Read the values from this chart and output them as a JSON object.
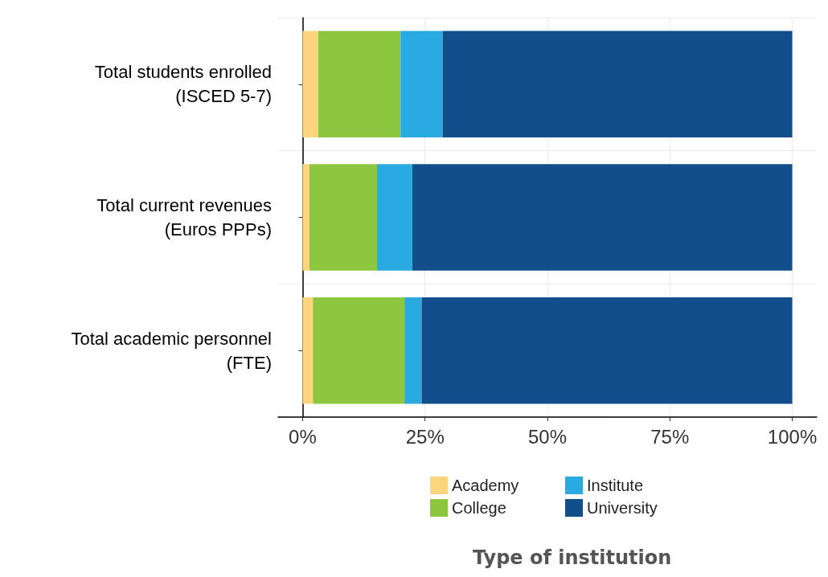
{
  "chart_data": {
    "type": "bar",
    "orientation": "horizontal",
    "stacked": true,
    "legend_title": "Type of institution",
    "legend": "bottom",
    "grid": true,
    "categories": [
      "Total students enrolled\n(ISCED 5-7)",
      "Total current revenues\n(Euros PPPs)",
      "Total academic personnel\n(FTE)"
    ],
    "series": [
      {
        "name": "Academy",
        "color": "#fdd57e",
        "values": [
          3.2,
          1.4,
          2.1
        ]
      },
      {
        "name": "College",
        "color": "#8dc63f",
        "values": [
          16.8,
          13.8,
          18.7
        ]
      },
      {
        "name": "Institute",
        "color": "#29abe2",
        "values": [
          8.6,
          7.2,
          3.5
        ]
      },
      {
        "name": "University",
        "color": "#124e8c",
        "values": [
          71.4,
          77.6,
          75.7
        ]
      }
    ],
    "xlim": [
      -5,
      105
    ],
    "xticks": [
      {
        "value": 0,
        "label": "0%"
      },
      {
        "value": 25,
        "label": "25%"
      },
      {
        "value": 50,
        "label": "50%"
      },
      {
        "value": 75,
        "label": "75%"
      },
      {
        "value": 100,
        "label": "100%"
      }
    ]
  }
}
